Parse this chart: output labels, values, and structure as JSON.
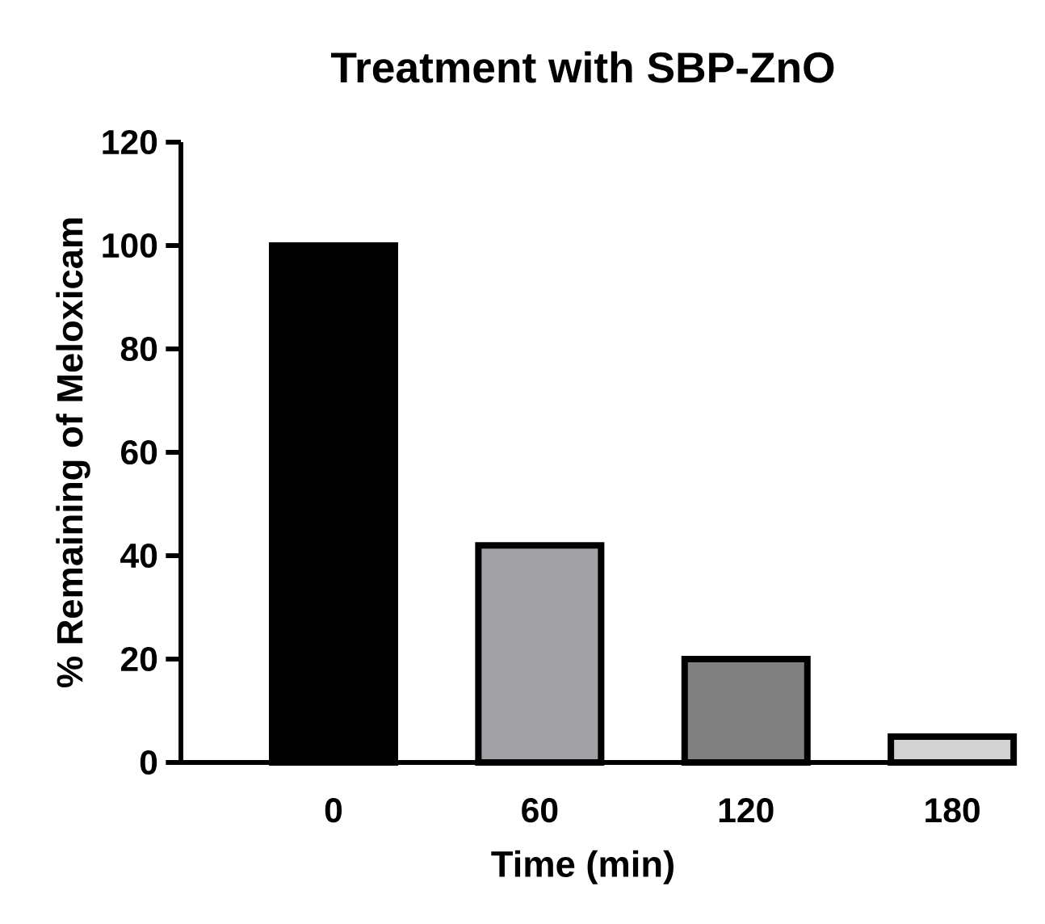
{
  "chart_data": {
    "type": "bar",
    "title": "Treatment with SBP-ZnO",
    "xlabel": "Time (min)",
    "ylabel": "% Remaining of Meloxicam",
    "categories": [
      "0",
      "60",
      "120",
      "180"
    ],
    "values": [
      100,
      42,
      20,
      5
    ],
    "colors": [
      "#000000",
      "#a0a0a5",
      "#808080",
      "#d2d2d2"
    ],
    "ylim": [
      0,
      120
    ],
    "yticks": [
      0,
      20,
      40,
      60,
      80,
      100,
      120
    ],
    "grid": false
  }
}
